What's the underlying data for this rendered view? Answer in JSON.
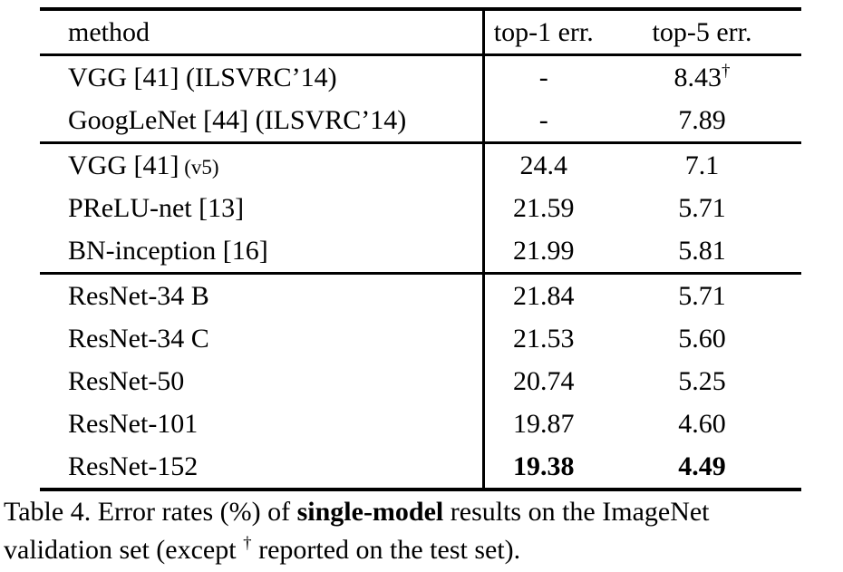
{
  "table": {
    "columns": [
      "method",
      "top-1 err.",
      "top-5 err."
    ],
    "groups": [
      {
        "rows": [
          {
            "method": "VGG [41] (ILSVRC’14)",
            "top1": "-",
            "top5": "8.43",
            "top5_sup": "†"
          },
          {
            "method": "GoogLeNet [44] (ILSVRC’14)",
            "top1": "-",
            "top5": "7.89"
          }
        ]
      },
      {
        "rows": [
          {
            "method": "VGG [41]",
            "method_small": "(v5)",
            "top1": "24.4",
            "top5": "7.1"
          },
          {
            "method": "PReLU-net [13]",
            "top1": "21.59",
            "top5": "5.71"
          },
          {
            "method": "BN-inception [16]",
            "top1": "21.99",
            "top5": "5.81"
          }
        ]
      },
      {
        "rows": [
          {
            "method": "ResNet-34 B",
            "top1": "21.84",
            "top5": "5.71"
          },
          {
            "method": "ResNet-34 C",
            "top1": "21.53",
            "top5": "5.60"
          },
          {
            "method": "ResNet-50",
            "top1": "20.74",
            "top5": "5.25"
          },
          {
            "method": "ResNet-101",
            "top1": "19.87",
            "top5": "4.60"
          },
          {
            "method": "ResNet-152",
            "top1": "19.38",
            "top5": "4.49",
            "bold_values": true
          }
        ]
      }
    ]
  },
  "caption": {
    "line1": {
      "pre": "Table 4. Error rates (%) of ",
      "bold": "single-model",
      "post": " results on the ImageNet"
    },
    "line2": {
      "pre": "validation set (except ",
      "sup": "†",
      "post": " reported on the test set)."
    }
  },
  "colors": {
    "background": "#ffffff",
    "text": "#000000",
    "rule": "#000000"
  }
}
